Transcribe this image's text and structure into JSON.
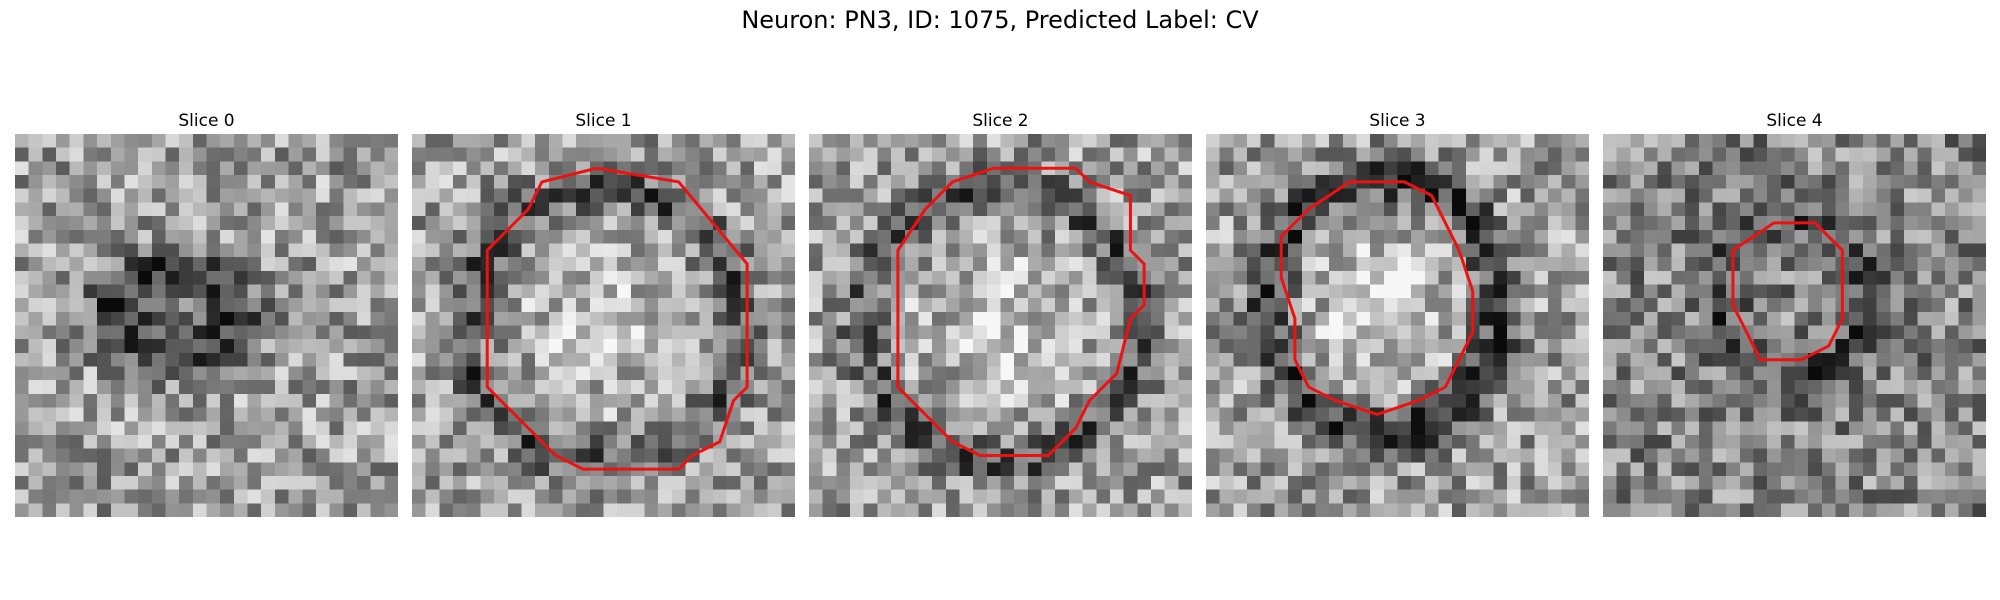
{
  "figure": {
    "title": "Neuron: PN3, ID: 1075, Predicted Label: CV"
  },
  "style": {
    "contour_color": "#ee1111"
  },
  "panels": [
    {
      "title": "Slice 0",
      "feature": "dark-ring",
      "contour": []
    },
    {
      "title": "Slice 1",
      "feature": "light-disk",
      "contour": [
        [
          13.5,
          2.5
        ],
        [
          19.5,
          3.5
        ],
        [
          24.5,
          9.5
        ],
        [
          24.5,
          18.5
        ],
        [
          23.5,
          19.5
        ],
        [
          22.5,
          22.5
        ],
        [
          20.5,
          23.5
        ],
        [
          19.5,
          24.5
        ],
        [
          12.5,
          24.5
        ],
        [
          10.5,
          23.5
        ],
        [
          8.5,
          21.5
        ],
        [
          7.5,
          20.5
        ],
        [
          5.5,
          18.5
        ],
        [
          5.5,
          8.5
        ],
        [
          8.5,
          5.5
        ],
        [
          9.5,
          3.5
        ]
      ]
    },
    {
      "title": "Slice 2",
      "feature": "light-disk",
      "contour": [
        [
          13.5,
          2.5
        ],
        [
          19.5,
          2.5
        ],
        [
          20.5,
          3.5
        ],
        [
          23.5,
          4.5
        ],
        [
          23.5,
          8.5
        ],
        [
          24.5,
          9.5
        ],
        [
          24.5,
          12.5
        ],
        [
          23.5,
          13.5
        ],
        [
          22.5,
          17.5
        ],
        [
          20.5,
          19.5
        ],
        [
          19.5,
          21.5
        ],
        [
          17.5,
          23.5
        ],
        [
          12.5,
          23.5
        ],
        [
          10.5,
          22.5
        ],
        [
          8.5,
          20.5
        ],
        [
          6.5,
          18.5
        ],
        [
          6.5,
          8.5
        ],
        [
          8.5,
          5.5
        ],
        [
          10.5,
          3.5
        ]
      ]
    },
    {
      "title": "Slice 3",
      "feature": "light-disk-dark-ring",
      "contour": [
        [
          10.5,
          3.5
        ],
        [
          14.5,
          3.5
        ],
        [
          16.5,
          4.5
        ],
        [
          17.5,
          6.5
        ],
        [
          18.5,
          8.5
        ],
        [
          19.5,
          11.5
        ],
        [
          19.5,
          14.5
        ],
        [
          18.5,
          16.5
        ],
        [
          17.5,
          18.5
        ],
        [
          15.5,
          19.5
        ],
        [
          12.5,
          20.5
        ],
        [
          9.5,
          19.5
        ],
        [
          7.5,
          18.5
        ],
        [
          6.5,
          16.5
        ],
        [
          6.5,
          13.5
        ],
        [
          5.5,
          10.5
        ],
        [
          5.5,
          7.5
        ],
        [
          7.5,
          5.5
        ]
      ]
    },
    {
      "title": "Slice 4",
      "feature": "small-disk",
      "contour": [
        [
          12.5,
          6.5
        ],
        [
          15.5,
          6.5
        ],
        [
          17.5,
          8.5
        ],
        [
          17.5,
          13.5
        ],
        [
          16.5,
          15.5
        ],
        [
          14.5,
          16.5
        ],
        [
          11.5,
          16.5
        ],
        [
          10.5,
          14.5
        ],
        [
          9.5,
          12.5
        ],
        [
          9.5,
          8.5
        ]
      ]
    }
  ]
}
